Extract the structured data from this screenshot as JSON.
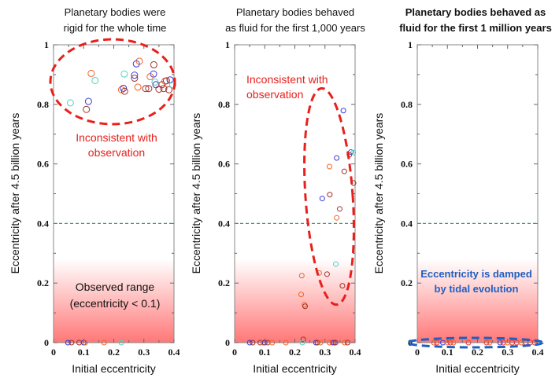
{
  "chart_data": [
    {
      "type": "scatter",
      "title": [
        "Planetary bodies were",
        "rigid for the whole time"
      ],
      "xlabel": "Initial eccentricity",
      "ylabel": "Eccentricity after 4.5 billion years",
      "xlim": [
        0,
        0.4
      ],
      "ylim": [
        0,
        1
      ],
      "xticks": [
        "0",
        "0.1",
        "0.2",
        "0.3",
        "0.4"
      ],
      "yticks": [
        "0",
        "0.2",
        "0.4",
        "0.6",
        "0.8",
        "1"
      ],
      "reference_line": 0.4,
      "annotations": [
        "Inconsistent with",
        "observation",
        "Observed range",
        "(eccentricity < 0.1)"
      ],
      "points": [
        {
          "x": 0.125,
          "y": 0.904,
          "c": "orange"
        },
        {
          "x": 0.138,
          "y": 0.88,
          "c": "cyan"
        },
        {
          "x": 0.056,
          "y": 0.805,
          "c": "cyan"
        },
        {
          "x": 0.116,
          "y": 0.81,
          "c": "blue"
        },
        {
          "x": 0.109,
          "y": 0.783,
          "c": "darkred"
        },
        {
          "x": 0.235,
          "y": 0.902,
          "c": "cyan"
        },
        {
          "x": 0.226,
          "y": 0.849,
          "c": "orange"
        },
        {
          "x": 0.232,
          "y": 0.854,
          "c": "blue"
        },
        {
          "x": 0.236,
          "y": 0.844,
          "c": "darkred"
        },
        {
          "x": 0.285,
          "y": 0.945,
          "c": "orange"
        },
        {
          "x": 0.275,
          "y": 0.936,
          "c": "blue"
        },
        {
          "x": 0.269,
          "y": 0.898,
          "c": "blue"
        },
        {
          "x": 0.269,
          "y": 0.888,
          "c": "darkred"
        },
        {
          "x": 0.28,
          "y": 0.858,
          "c": "orange"
        },
        {
          "x": 0.306,
          "y": 0.853,
          "c": "darkred"
        },
        {
          "x": 0.316,
          "y": 0.853,
          "c": "darkred"
        },
        {
          "x": 0.333,
          "y": 0.933,
          "c": "darkred"
        },
        {
          "x": 0.332,
          "y": 0.902,
          "c": "blue"
        },
        {
          "x": 0.321,
          "y": 0.893,
          "c": "orange"
        },
        {
          "x": 0.337,
          "y": 0.875,
          "c": "cyan"
        },
        {
          "x": 0.34,
          "y": 0.866,
          "c": "blue"
        },
        {
          "x": 0.35,
          "y": 0.851,
          "c": "darkred"
        },
        {
          "x": 0.366,
          "y": 0.853,
          "c": "darkred"
        },
        {
          "x": 0.37,
          "y": 0.878,
          "c": "orange"
        },
        {
          "x": 0.375,
          "y": 0.879,
          "c": "darkred"
        },
        {
          "x": 0.383,
          "y": 0.849,
          "c": "darkred"
        },
        {
          "x": 0.387,
          "y": 0.882,
          "c": "blue"
        },
        {
          "x": 0.36,
          "y": 0.866,
          "c": "darkred"
        },
        {
          "x": 0.396,
          "y": 0.866,
          "c": "cyan"
        },
        {
          "x": 0.048,
          "y": 0,
          "c": "blue"
        },
        {
          "x": 0.06,
          "y": 0,
          "c": "darkred"
        },
        {
          "x": 0.085,
          "y": 0,
          "c": "darkred"
        },
        {
          "x": 0.1,
          "y": 0,
          "c": "blue"
        },
        {
          "x": 0.105,
          "y": 0,
          "c": "orange"
        },
        {
          "x": 0.168,
          "y": 0,
          "c": "orange"
        },
        {
          "x": 0.225,
          "y": 0,
          "c": "cyan"
        }
      ]
    },
    {
      "type": "scatter",
      "title": [
        "Planetary bodies  behaved",
        "as fluid for the first 1,000 years"
      ],
      "xlabel": "Initial eccentricity",
      "ylabel": "Eccentricity after 4.5 billion years",
      "xlim": [
        0,
        0.4
      ],
      "ylim": [
        0,
        1
      ],
      "xticks": [
        "0",
        "0.1",
        "0.2",
        "0.3",
        "0.4"
      ],
      "yticks": [
        "0",
        "0.2",
        "0.4",
        "0.6",
        "0.8",
        "1"
      ],
      "reference_line": 0.4,
      "annotations": [
        "Inconsistent with",
        "observation"
      ],
      "points": [
        {
          "x": 0.361,
          "y": 0.779,
          "c": "blue"
        },
        {
          "x": 0.386,
          "y": 0.64,
          "c": "blue"
        },
        {
          "x": 0.394,
          "y": 0.638,
          "c": "cyan"
        },
        {
          "x": 0.381,
          "y": 0.631,
          "c": "darkred"
        },
        {
          "x": 0.339,
          "y": 0.62,
          "c": "blue"
        },
        {
          "x": 0.315,
          "y": 0.591,
          "c": "orange"
        },
        {
          "x": 0.364,
          "y": 0.575,
          "c": "darkred"
        },
        {
          "x": 0.395,
          "y": 0.536,
          "c": "darkred"
        },
        {
          "x": 0.316,
          "y": 0.497,
          "c": "darkred"
        },
        {
          "x": 0.291,
          "y": 0.484,
          "c": "blue"
        },
        {
          "x": 0.349,
          "y": 0.449,
          "c": "darkred"
        },
        {
          "x": 0.339,
          "y": 0.419,
          "c": "orange"
        },
        {
          "x": 0.336,
          "y": 0.264,
          "c": "cyan"
        },
        {
          "x": 0.223,
          "y": 0.225,
          "c": "orange"
        },
        {
          "x": 0.281,
          "y": 0.234,
          "c": "orange"
        },
        {
          "x": 0.307,
          "y": 0.23,
          "c": "darkred"
        },
        {
          "x": 0.358,
          "y": 0.191,
          "c": "darkred"
        },
        {
          "x": 0.221,
          "y": 0.162,
          "c": "orange"
        },
        {
          "x": 0.232,
          "y": 0.127,
          "c": "orange"
        },
        {
          "x": 0.234,
          "y": 0.122,
          "c": "darkred"
        },
        {
          "x": 0.228,
          "y": 0.011,
          "c": "darkred"
        },
        {
          "x": 0.05,
          "y": 0,
          "c": "blue"
        },
        {
          "x": 0.06,
          "y": 0,
          "c": "darkred"
        },
        {
          "x": 0.085,
          "y": 0,
          "c": "darkred"
        },
        {
          "x": 0.095,
          "y": 0,
          "c": "orange"
        },
        {
          "x": 0.1,
          "y": 0,
          "c": "blue"
        },
        {
          "x": 0.11,
          "y": 0,
          "c": "darkred"
        },
        {
          "x": 0.125,
          "y": 0,
          "c": "orange"
        },
        {
          "x": 0.17,
          "y": 0,
          "c": "orange"
        },
        {
          "x": 0.225,
          "y": 0,
          "c": "cyan"
        },
        {
          "x": 0.27,
          "y": 0,
          "c": "blue"
        },
        {
          "x": 0.275,
          "y": 0,
          "c": "darkred"
        },
        {
          "x": 0.285,
          "y": 0,
          "c": "orange"
        },
        {
          "x": 0.315,
          "y": 0,
          "c": "orange"
        },
        {
          "x": 0.325,
          "y": 0,
          "c": "red"
        },
        {
          "x": 0.33,
          "y": 0,
          "c": "blue"
        },
        {
          "x": 0.335,
          "y": 0,
          "c": "darkred"
        },
        {
          "x": 0.365,
          "y": 0,
          "c": "orange"
        },
        {
          "x": 0.375,
          "y": 0,
          "c": "darkred"
        }
      ]
    },
    {
      "type": "scatter",
      "title": [
        "Planetary bodies behaved as",
        "fluid for the first 1 million years"
      ],
      "xlabel": "Initial eccentricity",
      "ylabel": "Eccentricity after 4.5 billion years",
      "xlim": [
        0,
        0.4
      ],
      "ylim": [
        0,
        1
      ],
      "xticks": [
        "0",
        "0.1",
        "0.2",
        "0.3",
        "0.4"
      ],
      "yticks": [
        "0",
        "0.2",
        "0.4",
        "0.6",
        "0.8",
        "1"
      ],
      "reference_line": 0.4,
      "annotations": [
        "Eccentricity is damped",
        "by tidal evolution"
      ],
      "points": [
        {
          "x": 0.055,
          "y": 0,
          "c": "orange"
        },
        {
          "x": 0.065,
          "y": 0,
          "c": "red"
        },
        {
          "x": 0.085,
          "y": 0,
          "c": "blue"
        },
        {
          "x": 0.1,
          "y": 0,
          "c": "orange"
        },
        {
          "x": 0.11,
          "y": 0,
          "c": "red"
        },
        {
          "x": 0.12,
          "y": 0,
          "c": "orange"
        },
        {
          "x": 0.17,
          "y": 0,
          "c": "red"
        },
        {
          "x": 0.23,
          "y": 0,
          "c": "red"
        },
        {
          "x": 0.24,
          "y": 0,
          "c": "orange"
        },
        {
          "x": 0.275,
          "y": 0,
          "c": "blue"
        },
        {
          "x": 0.285,
          "y": 0,
          "c": "red"
        },
        {
          "x": 0.3,
          "y": 0,
          "c": "orange"
        },
        {
          "x": 0.315,
          "y": 0,
          "c": "red"
        },
        {
          "x": 0.33,
          "y": 0,
          "c": "red"
        },
        {
          "x": 0.345,
          "y": 0,
          "c": "orange"
        },
        {
          "x": 0.36,
          "y": 0,
          "c": "red"
        },
        {
          "x": 0.375,
          "y": 0,
          "c": "red"
        },
        {
          "x": 0.39,
          "y": 0,
          "c": "red"
        }
      ]
    }
  ],
  "colors": {
    "orange": "#f0642a",
    "darkred": "#a3302c",
    "blue": "#3a3ad8",
    "cyan": "#4fd0c6",
    "red": "#e83a3a",
    "inconsistent": "#e8201c",
    "damped": "#1f5fbf",
    "reference_line": "#2a9a7a",
    "observed_range": "#ff7070"
  }
}
